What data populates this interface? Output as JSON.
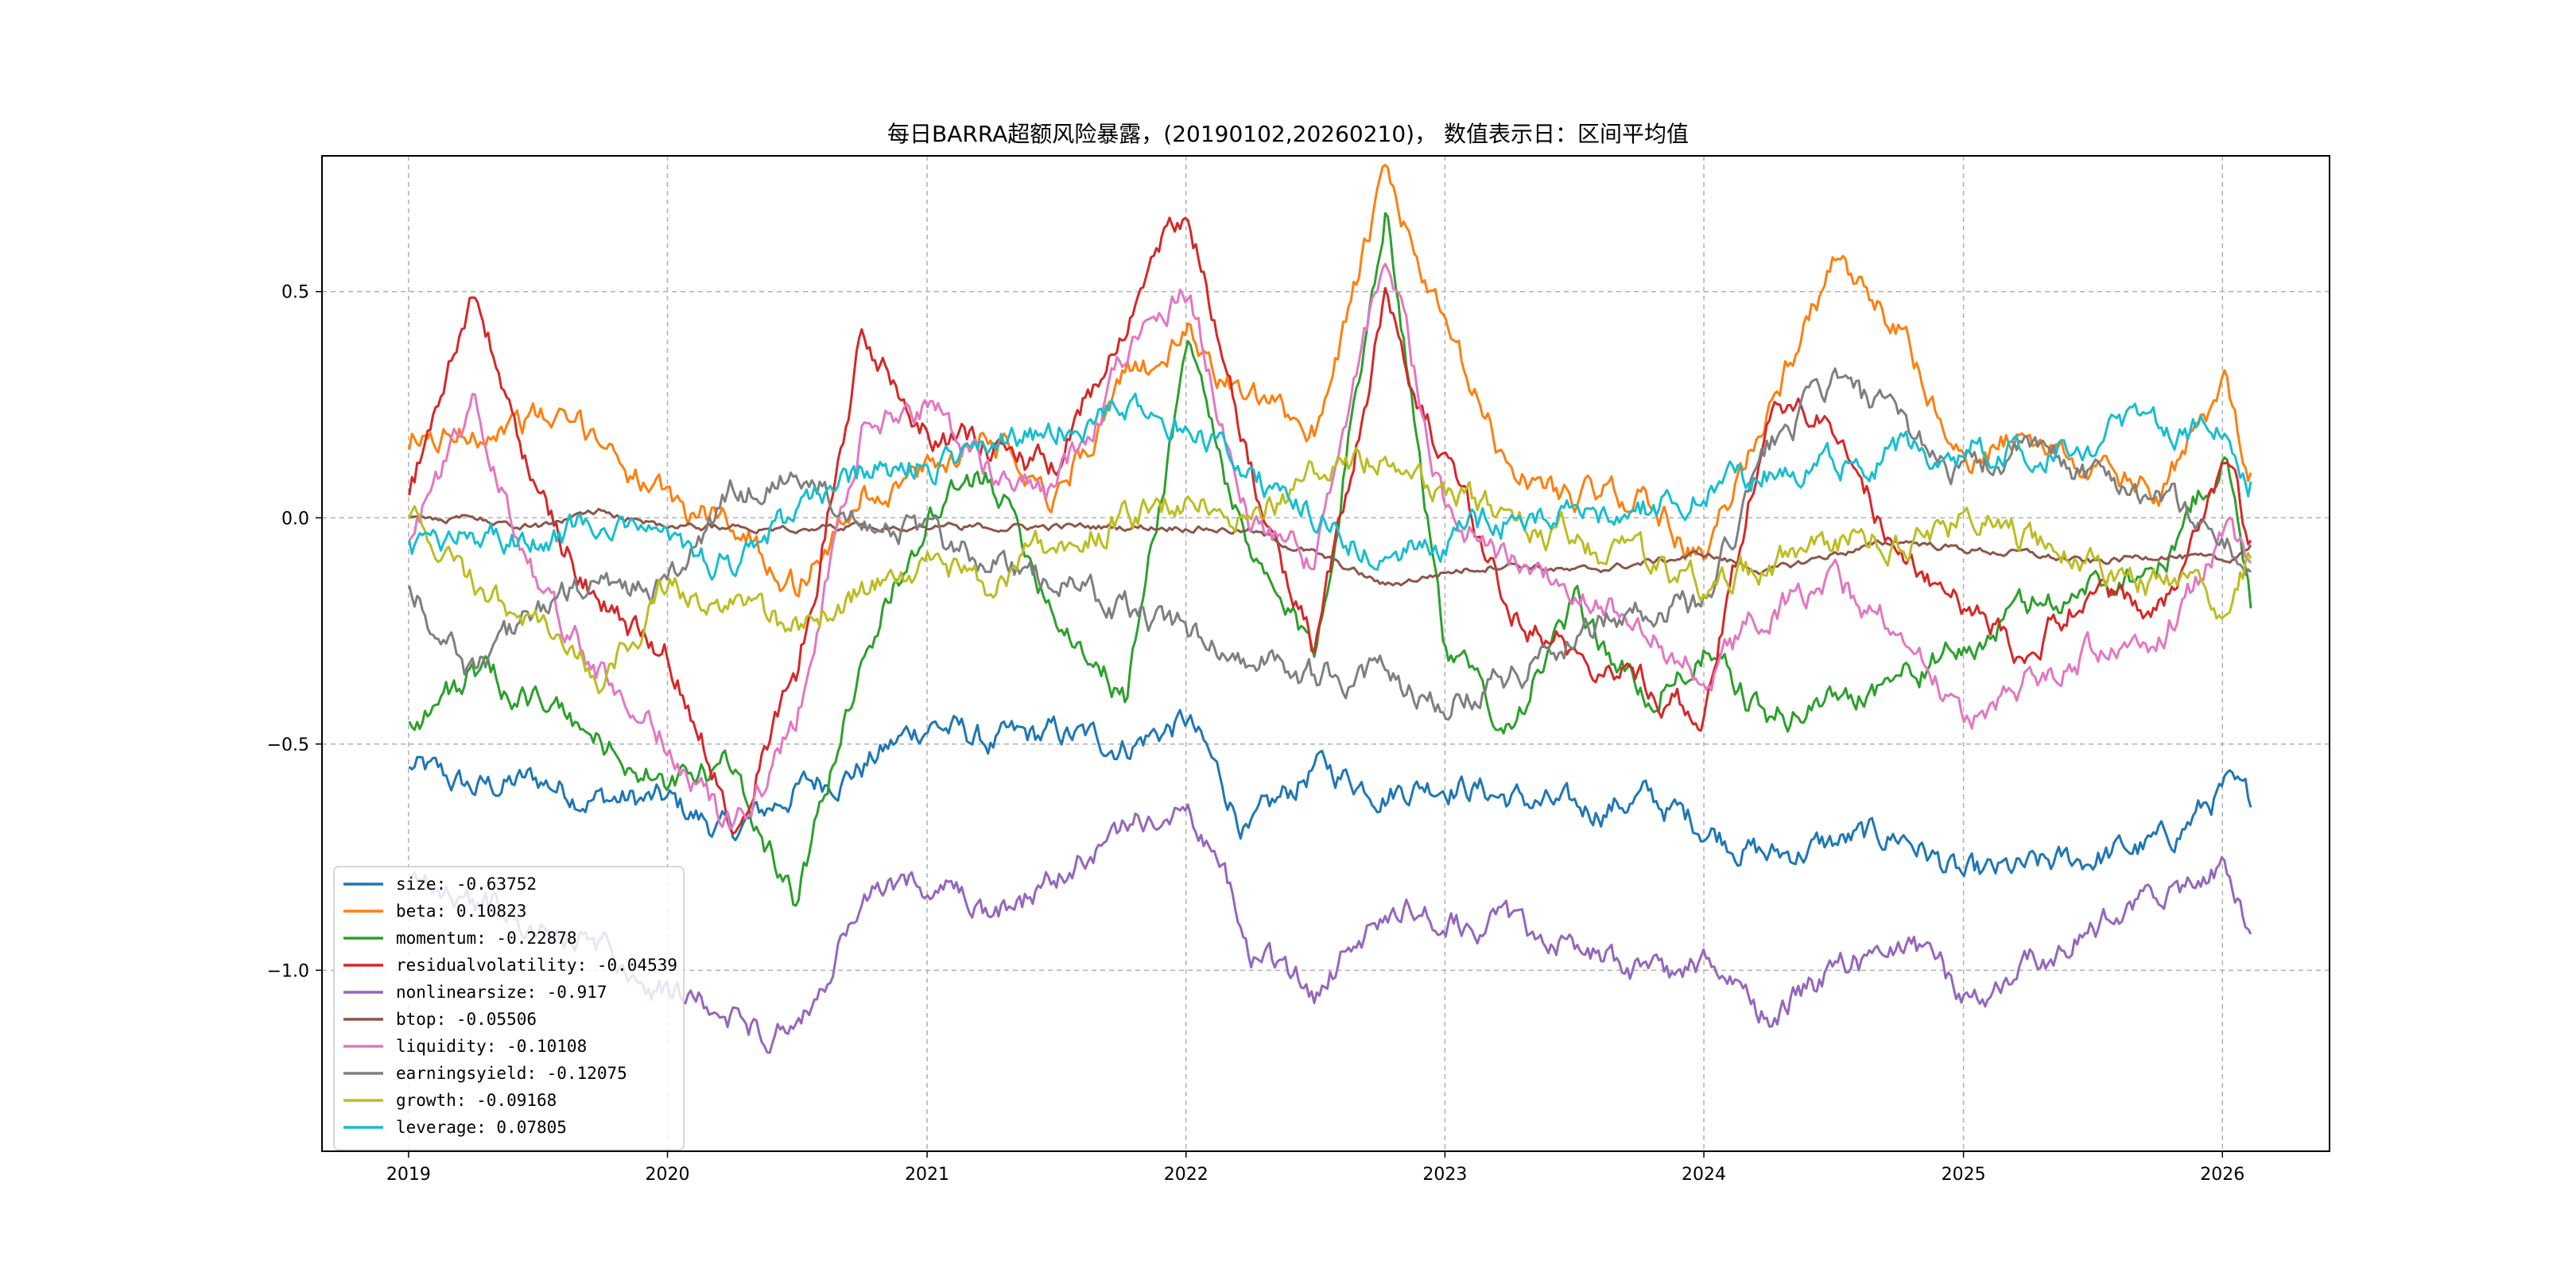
{
  "chart_data": {
    "type": "line",
    "title": "每日BARRA超额风险暴露，(20190102,20260210)， 数值表示日：区间平均值",
    "xlabel": "",
    "ylabel": "",
    "x_range": [
      "2019-01-02",
      "2026-02-10"
    ],
    "xlim": [
      "2018-09-01",
      "2026-06-01"
    ],
    "ylim": [
      -1.4,
      0.8
    ],
    "grid": true,
    "legend_position": "lower-left",
    "x_ticks": [
      "2019",
      "2020",
      "2021",
      "2022",
      "2023",
      "2024",
      "2025",
      "2026"
    ],
    "y_ticks": [
      "−1.0",
      "−0.5",
      "0.0",
      "0.5"
    ],
    "y_tick_values": [
      -1.0,
      -0.5,
      0.0,
      0.5
    ],
    "dates": [
      "2019-01-02",
      "2019-04-01",
      "2019-07-01",
      "2019-10-01",
      "2020-01-02",
      "2020-04-01",
      "2020-07-01",
      "2020-10-01",
      "2021-01-04",
      "2021-04-01",
      "2021-07-01",
      "2021-10-08",
      "2022-01-04",
      "2022-04-01",
      "2022-07-01",
      "2022-10-10",
      "2023-01-03",
      "2023-04-03",
      "2023-07-03",
      "2023-10-09",
      "2024-01-02",
      "2024-04-01",
      "2024-07-01",
      "2024-10-08",
      "2025-01-02",
      "2025-04-01",
      "2025-07-01",
      "2025-10-09",
      "2026-01-05",
      "2026-02-10"
    ],
    "series": [
      {
        "name": "size",
        "legend_label": "size: -0.63752",
        "color": "#1f77b4",
        "values": [
          -0.55,
          -0.6,
          -0.58,
          -0.62,
          -0.63,
          -0.7,
          -0.6,
          -0.55,
          -0.45,
          -0.5,
          -0.48,
          -0.5,
          -0.45,
          -0.7,
          -0.55,
          -0.6,
          -0.58,
          -0.62,
          -0.65,
          -0.62,
          -0.68,
          -0.75,
          -0.72,
          -0.7,
          -0.8,
          -0.78,
          -0.75,
          -0.72,
          -0.6,
          -0.64
        ]
      },
      {
        "name": "beta",
        "legend_label": "beta: 0.10823",
        "color": "#ff7f0e",
        "values": [
          0.15,
          0.2,
          0.22,
          0.18,
          0.02,
          0.0,
          -0.15,
          0.05,
          0.1,
          0.2,
          0.05,
          0.3,
          0.4,
          0.25,
          0.2,
          0.75,
          0.4,
          0.1,
          0.05,
          0.05,
          -0.1,
          0.25,
          0.55,
          0.4,
          0.1,
          0.2,
          0.1,
          0.05,
          0.3,
          0.1
        ]
      },
      {
        "name": "momentum",
        "legend_label": "momentum: -0.22878",
        "color": "#2ca02c",
        "values": [
          -0.45,
          -0.35,
          -0.4,
          -0.5,
          -0.6,
          -0.55,
          -0.85,
          -0.3,
          0.0,
          0.1,
          -0.2,
          -0.4,
          0.4,
          -0.1,
          -0.3,
          0.7,
          -0.3,
          -0.45,
          -0.2,
          -0.4,
          -0.3,
          -0.45,
          -0.4,
          -0.35,
          -0.3,
          -0.2,
          -0.15,
          -0.1,
          0.15,
          -0.2
        ]
      },
      {
        "name": "residualvolatility",
        "legend_label": "residualvolatility: -0.04539",
        "color": "#d62728",
        "values": [
          0.05,
          0.5,
          0.05,
          -0.2,
          -0.3,
          -0.65,
          -0.35,
          0.4,
          0.2,
          0.15,
          0.1,
          0.45,
          0.7,
          0.1,
          -0.3,
          0.5,
          0.1,
          -0.2,
          -0.3,
          -0.35,
          -0.45,
          0.25,
          0.2,
          -0.1,
          -0.2,
          -0.3,
          -0.15,
          -0.2,
          0.1,
          -0.05
        ]
      },
      {
        "name": "nonlinearsize",
        "legend_label": "nonlinearsize: -0.917",
        "color": "#9467bd",
        "values": [
          -0.8,
          -0.85,
          -0.9,
          -0.95,
          -1.05,
          -1.1,
          -1.15,
          -0.85,
          -0.8,
          -0.9,
          -0.8,
          -0.7,
          -0.6,
          -0.95,
          -1.05,
          -0.85,
          -0.9,
          -0.9,
          -0.95,
          -1.0,
          -1.0,
          -1.1,
          -1.0,
          -0.95,
          -1.05,
          -1.0,
          -0.9,
          -0.85,
          -0.75,
          -0.92
        ]
      },
      {
        "name": "btop",
        "legend_label": "btop: -0.05506",
        "color": "#8c564b",
        "values": [
          0.0,
          0.0,
          -0.02,
          0.02,
          -0.02,
          -0.02,
          -0.02,
          -0.02,
          -0.02,
          -0.02,
          -0.02,
          -0.02,
          -0.02,
          -0.03,
          -0.08,
          -0.15,
          -0.12,
          -0.1,
          -0.12,
          -0.1,
          -0.08,
          -0.12,
          -0.08,
          -0.05,
          -0.07,
          -0.08,
          -0.1,
          -0.08,
          -0.1,
          -0.06
        ]
      },
      {
        "name": "liquidity",
        "legend_label": "liquidity: -0.10108",
        "color": "#e377c2",
        "values": [
          -0.05,
          0.25,
          -0.15,
          -0.35,
          -0.5,
          -0.7,
          -0.45,
          0.2,
          0.25,
          0.1,
          0.05,
          0.35,
          0.5,
          0.0,
          -0.1,
          0.6,
          0.0,
          -0.1,
          -0.15,
          -0.25,
          -0.35,
          -0.2,
          -0.15,
          -0.25,
          -0.45,
          -0.35,
          -0.3,
          -0.25,
          -0.05,
          -0.1
        ]
      },
      {
        "name": "earningsyield",
        "legend_label": "earningsyield: -0.12075",
        "color": "#7f7f7f",
        "values": [
          -0.15,
          -0.35,
          -0.2,
          -0.15,
          -0.15,
          0.05,
          0.1,
          0.02,
          -0.05,
          -0.1,
          -0.15,
          -0.2,
          -0.25,
          -0.3,
          -0.35,
          -0.35,
          -0.4,
          -0.35,
          -0.25,
          -0.2,
          -0.2,
          0.15,
          0.3,
          0.2,
          0.1,
          0.15,
          0.1,
          0.05,
          -0.05,
          -0.12
        ]
      },
      {
        "name": "growth",
        "legend_label": "growth: -0.09168",
        "color": "#bcbd22",
        "values": [
          0.0,
          -0.15,
          -0.25,
          -0.35,
          -0.15,
          -0.2,
          -0.25,
          -0.15,
          -0.1,
          -0.15,
          -0.05,
          0.0,
          0.05,
          0.0,
          0.1,
          0.15,
          0.05,
          0.0,
          -0.05,
          -0.1,
          -0.15,
          -0.1,
          -0.05,
          -0.05,
          0.0,
          -0.05,
          -0.1,
          -0.15,
          -0.2,
          -0.09
        ]
      },
      {
        "name": "leverage",
        "legend_label": "leverage: 0.07805",
        "color": "#17becf",
        "values": [
          -0.05,
          -0.05,
          -0.05,
          0.0,
          -0.05,
          -0.1,
          0.0,
          0.1,
          0.12,
          0.15,
          0.2,
          0.25,
          0.2,
          0.1,
          0.0,
          -0.1,
          -0.05,
          0.0,
          0.0,
          0.02,
          0.05,
          0.1,
          0.12,
          0.15,
          0.15,
          0.15,
          0.18,
          0.2,
          0.2,
          0.08
        ]
      }
    ]
  }
}
